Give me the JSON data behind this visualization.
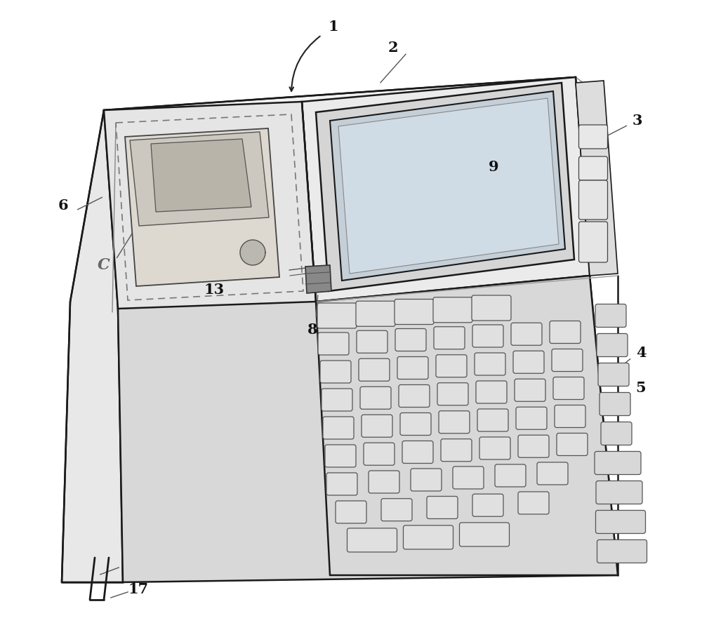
{
  "bg_color": "#ffffff",
  "line_color": "#1a1a1a",
  "shade1": "#e8e8e8",
  "shade2": "#d8d8d8",
  "shade3": "#c8c8c8",
  "shade4": "#f2f2f2",
  "key_fill": "#e0e0e0",
  "key_edge": "#555555",
  "figsize": [
    10.0,
    8.91
  ],
  "dpi": 100
}
